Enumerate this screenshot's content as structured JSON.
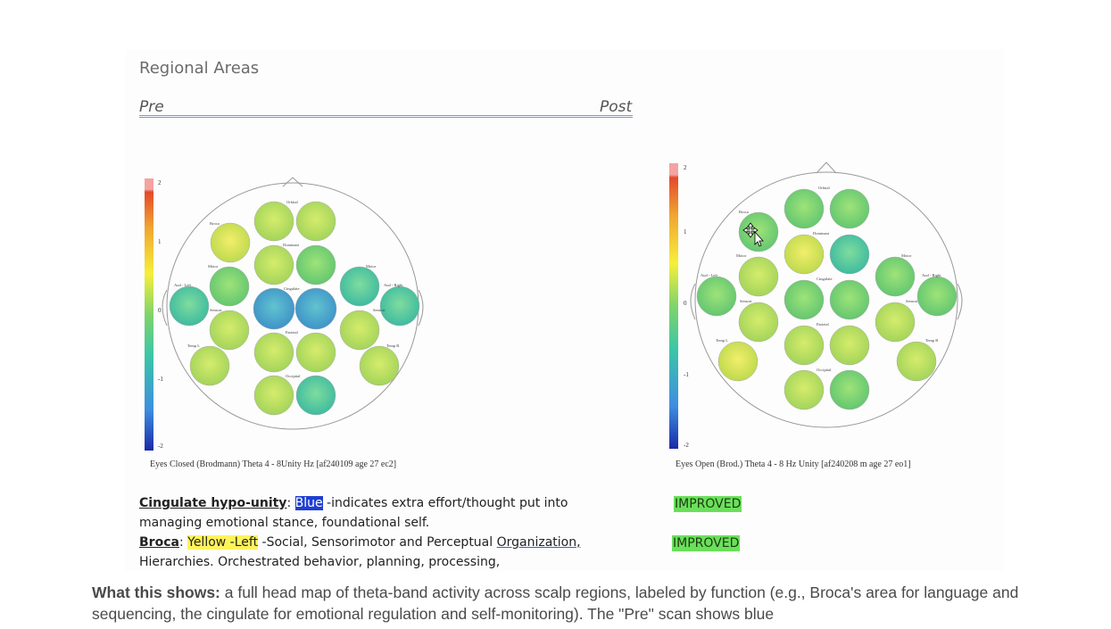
{
  "document": {
    "title": "Regional Areas",
    "pre_label": "Pre",
    "post_label": "Post"
  },
  "maps": {
    "pre": {
      "caption": "Eyes Closed (Brodmann)    Theta   4 - 8Unity Hz   [af240109 age 27  ec2]",
      "scale_ticks": [
        "2",
        "1",
        "0",
        "-1",
        "-2"
      ],
      "region_labels": [
        "Orbital",
        "Broca",
        "Dominant",
        "Motor",
        "Motor",
        "Aud - Left",
        "Aud - Right",
        "Cingulate",
        "Sensori",
        "Sensori",
        "Parietal",
        "Temp L",
        "Temp R",
        "Occipital"
      ],
      "heads": [
        {
          "x": 0,
          "y": 0,
          "color": "#d7e35a"
        },
        {
          "x": 0,
          "y": 0,
          "color": "#c8e35a"
        }
      ]
    },
    "post": {
      "caption": "Eyes Open (Brod.)   Theta   4 - 8 Hz Unity  [af240208 m age 27  eo1]",
      "scale_ticks": [
        "2",
        "1",
        "0",
        "-1",
        "-2"
      ],
      "region_labels": [
        "Orbital",
        "Broca",
        "Dominant",
        "Motor",
        "Motor",
        "Aud - Left",
        "Aud - Right",
        "Cingulate",
        "Sensori",
        "Sensori",
        "Parietal",
        "Temp L",
        "Temp R",
        "Occipital"
      ]
    }
  },
  "findings": {
    "cingulate": {
      "label": "Cingulate hypo-unity",
      "sep": ":",
      "highlight": "Blue",
      "text1": " -indicates extra effort/thought put into",
      "text2": "managing emotional stance, foundational self.",
      "status": "IMPROVED"
    },
    "broca": {
      "label": "Broca",
      "sep": ": ",
      "highlight": "Yellow -Left",
      "text1": " -Social, Sensorimotor and Perceptual ",
      "link": "Organization,",
      "text2": "Hierarchies.  Orchestrated behavior, planning, processing,",
      "status": "IMPROVED"
    }
  },
  "explanation": {
    "lead": "What this shows:",
    "text": " a full head map of theta-band activity across scalp regions, labeled by function (e.g., Broca's area for language and sequencing, the cingulate for emotional regulation and self-monitoring). The \"Pre\" scan shows blue"
  },
  "colors": {
    "scale_top": "#f4a3a0",
    "scale_red": "#e34a2b",
    "scale_orange": "#f0a431",
    "scale_yellow": "#f6ef3a",
    "scale_green": "#7fd46a",
    "scale_teal": "#3cc6a6",
    "scale_blue": "#3d8ee0",
    "scale_dark": "#1b2aa8",
    "highlight_blue": "#1f3fd1",
    "highlight_yellow": "#fff35a",
    "improved_green": "#6ae05a"
  }
}
